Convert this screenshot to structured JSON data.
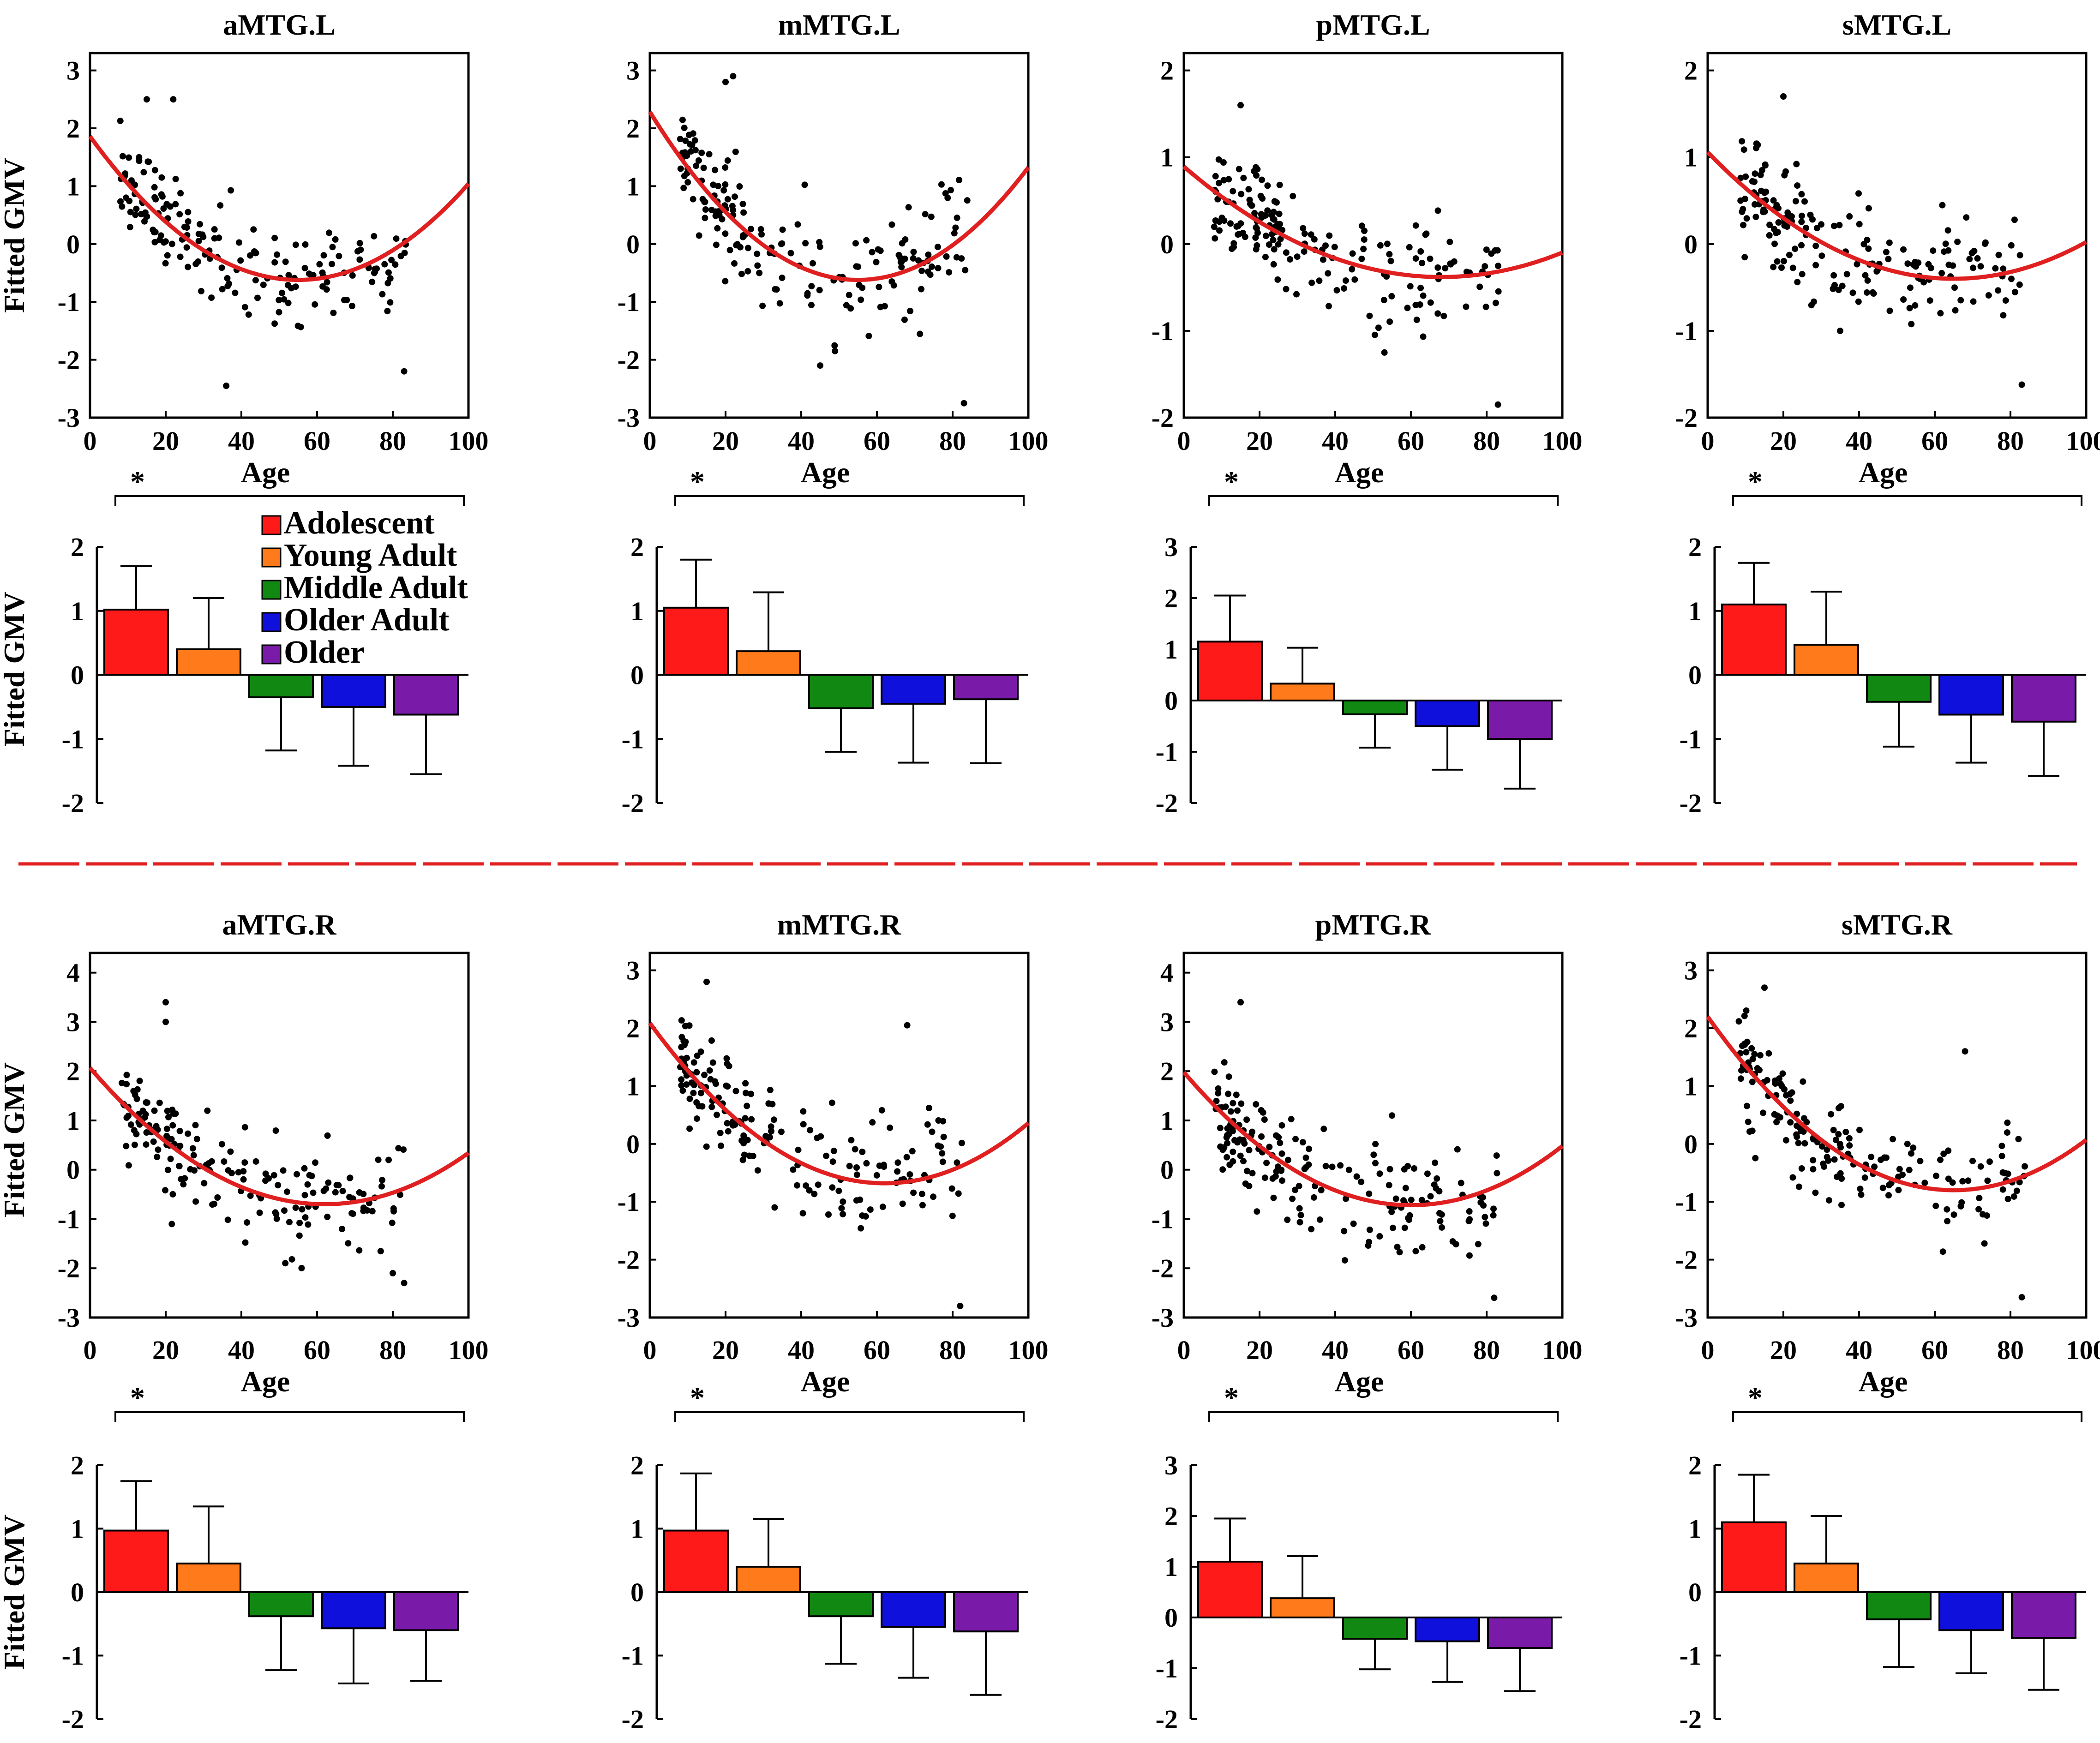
{
  "figure": {
    "divider_color": "#e02020",
    "fit_color": "#e02020",
    "point_color": "#000000"
  },
  "legend": {
    "items": [
      {
        "label": "Adolescent",
        "color": "#ff1a1a"
      },
      {
        "label": "Young Adult",
        "color": "#ff7a1a"
      },
      {
        "label": "Middle Adult",
        "color": "#118811"
      },
      {
        "label": "Older Adult",
        "color": "#1010dd"
      },
      {
        "label": "Older",
        "color": "#7a1aa8"
      }
    ]
  },
  "chart_data": [
    {
      "region": "aMTG.L",
      "title": "aMTG.L",
      "type": "scatter",
      "xlabel": "Age",
      "ylabel": "Fitted GMV",
      "xlim": [
        0,
        100
      ],
      "ylim": [
        -3,
        3.3
      ],
      "xticks": [
        "0",
        "20",
        "40",
        "60",
        "80",
        "100"
      ],
      "yticks": [
        "-3",
        "-2",
        "-1",
        "0",
        "1",
        "2",
        "3"
      ],
      "fit": {
        "a": 0.00082,
        "vertex_age": 55,
        "vertex_gmv": -0.62
      },
      "scatter_seed": 11,
      "outliers": [
        [
          15,
          2.5
        ],
        [
          22,
          2.5
        ],
        [
          36,
          -2.45
        ],
        [
          83,
          -2.2
        ]
      ],
      "bar": {
        "type": "bar",
        "ylabel": "Fitted GMV",
        "categories": [
          "Adolescent",
          "Young Adult",
          "Middle Adult",
          "Older Adult",
          "Older"
        ],
        "values": [
          1.02,
          0.4,
          -0.35,
          -0.5,
          -0.62
        ],
        "errors": [
          0.68,
          0.8,
          0.83,
          0.92,
          0.93
        ],
        "ylim": [
          -2,
          2
        ],
        "yticks": [
          "-2",
          "-1",
          "0",
          "1",
          "2"
        ],
        "sig": "*"
      }
    },
    {
      "region": "mMTG.L",
      "title": "mMTG.L",
      "type": "scatter",
      "xlabel": "Age",
      "ylabel": "",
      "xlim": [
        0,
        100
      ],
      "ylim": [
        -3,
        3.3
      ],
      "xticks": [
        "0",
        "20",
        "40",
        "60",
        "80",
        "100"
      ],
      "yticks": [
        "-3",
        "-2",
        "-1",
        "0",
        "1",
        "2",
        "3"
      ],
      "fit": {
        "a": 0.00096,
        "vertex_age": 55,
        "vertex_gmv": -0.62
      },
      "scatter_seed": 23,
      "outliers": [
        [
          20,
          2.8
        ],
        [
          22,
          2.9
        ],
        [
          83,
          -2.75
        ],
        [
          45,
          -2.1
        ]
      ],
      "bar": {
        "type": "bar",
        "ylabel": "",
        "categories": [
          "Adolescent",
          "Young Adult",
          "Middle Adult",
          "Older Adult",
          "Older"
        ],
        "values": [
          1.05,
          0.37,
          -0.52,
          -0.45,
          -0.38
        ],
        "errors": [
          0.75,
          0.92,
          0.68,
          0.92,
          1.0
        ],
        "ylim": [
          -2,
          2
        ],
        "yticks": [
          "-2",
          "-1",
          "0",
          "1",
          "2"
        ],
        "sig": "*"
      }
    },
    {
      "region": "pMTG.L",
      "title": "pMTG.L",
      "type": "scatter",
      "xlabel": "Age",
      "ylabel": "",
      "xlim": [
        0,
        100
      ],
      "ylim": [
        -2,
        2.2
      ],
      "xticks": [
        "0",
        "20",
        "40",
        "60",
        "80",
        "100"
      ],
      "yticks": [
        "-2",
        "-1",
        "0",
        "1",
        "2"
      ],
      "fit": {
        "a": 0.000275,
        "vertex_age": 68,
        "vertex_gmv": -0.38
      },
      "scatter_seed": 37,
      "outliers": [
        [
          15,
          1.6
        ],
        [
          53,
          -1.25
        ],
        [
          83,
          -1.85
        ]
      ],
      "bar": {
        "type": "bar",
        "ylabel": "",
        "categories": [
          "Adolescent",
          "Young Adult",
          "Middle Adult",
          "Older Adult",
          "Older"
        ],
        "values": [
          1.15,
          0.33,
          -0.27,
          -0.5,
          -0.75
        ],
        "errors": [
          0.9,
          0.7,
          0.65,
          0.85,
          0.97
        ],
        "ylim": [
          -2,
          3
        ],
        "yticks": [
          "-2",
          "-1",
          "0",
          "1",
          "2",
          "3"
        ],
        "sig": "*"
      }
    },
    {
      "region": "sMTG.L",
      "title": "sMTG.L",
      "type": "scatter",
      "xlabel": "Age",
      "ylabel": "",
      "xlim": [
        0,
        100
      ],
      "ylim": [
        -2,
        2.2
      ],
      "xticks": [
        "0",
        "20",
        "40",
        "60",
        "80",
        "100"
      ],
      "yticks": [
        "-2",
        "-1",
        "0",
        "1",
        "2"
      ],
      "fit": {
        "a": 0.000345,
        "vertex_age": 65,
        "vertex_gmv": -0.4
      },
      "scatter_seed": 41,
      "outliers": [
        [
          20,
          1.7
        ],
        [
          83,
          -1.62
        ],
        [
          35,
          -1.0
        ]
      ],
      "bar": {
        "type": "bar",
        "ylabel": "",
        "categories": [
          "Adolescent",
          "Young Adult",
          "Middle Adult",
          "Older Adult",
          "Older"
        ],
        "values": [
          1.1,
          0.47,
          -0.42,
          -0.62,
          -0.73
        ],
        "errors": [
          0.65,
          0.83,
          0.7,
          0.75,
          0.85
        ],
        "ylim": [
          -2,
          2
        ],
        "yticks": [
          "-2",
          "-1",
          "0",
          "1",
          "2"
        ],
        "sig": "*"
      }
    },
    {
      "region": "aMTG.R",
      "title": "aMTG.R",
      "type": "scatter",
      "xlabel": "Age",
      "ylabel": "Fitted GMV",
      "xlim": [
        0,
        100
      ],
      "ylim": [
        -3,
        4.4
      ],
      "xticks": [
        "0",
        "20",
        "40",
        "60",
        "80",
        "100"
      ],
      "yticks": [
        "-3",
        "-2",
        "-1",
        "0",
        "1",
        "2",
        "3",
        "4"
      ],
      "fit": {
        "a": 0.00072,
        "vertex_age": 62,
        "vertex_gmv": -0.7
      },
      "scatter_seed": 53,
      "outliers": [
        [
          20,
          3.4
        ],
        [
          20,
          3.0
        ],
        [
          83,
          -2.3
        ],
        [
          80,
          -2.1
        ]
      ],
      "bar": {
        "type": "bar",
        "ylabel": "Fitted GMV",
        "categories": [
          "Adolescent",
          "Young Adult",
          "Middle Adult",
          "Older Adult",
          "Older"
        ],
        "values": [
          0.97,
          0.45,
          -0.38,
          -0.57,
          -0.6
        ],
        "errors": [
          0.78,
          0.9,
          0.85,
          0.87,
          0.8
        ],
        "ylim": [
          -2,
          2
        ],
        "yticks": [
          "-2",
          "-1",
          "0",
          "1",
          "2"
        ],
        "sig": "*"
      }
    },
    {
      "region": "mMTG.R",
      "title": "mMTG.R",
      "type": "scatter",
      "xlabel": "Age",
      "ylabel": "",
      "xlim": [
        0,
        100
      ],
      "ylim": [
        -3,
        3.3
      ],
      "xticks": [
        "0",
        "20",
        "40",
        "60",
        "80",
        "100"
      ],
      "yticks": [
        "-3",
        "-2",
        "-1",
        "0",
        "1",
        "2",
        "3"
      ],
      "fit": {
        "a": 0.00072,
        "vertex_age": 62,
        "vertex_gmv": -0.68
      },
      "scatter_seed": 67,
      "outliers": [
        [
          15,
          2.8
        ],
        [
          68,
          2.05
        ],
        [
          82,
          -2.8
        ]
      ],
      "bar": {
        "type": "bar",
        "ylabel": "",
        "categories": [
          "Adolescent",
          "Young Adult",
          "Middle Adult",
          "Older Adult",
          "Older"
        ],
        "values": [
          0.97,
          0.4,
          -0.38,
          -0.55,
          -0.62
        ],
        "errors": [
          0.9,
          0.75,
          0.75,
          0.8,
          1.0
        ],
        "ylim": [
          -2,
          2
        ],
        "yticks": [
          "-2",
          "-1",
          "0",
          "1",
          "2"
        ],
        "sig": "*"
      }
    },
    {
      "region": "pMTG.R",
      "title": "pMTG.R",
      "type": "scatter",
      "xlabel": "Age",
      "ylabel": "",
      "xlim": [
        0,
        100
      ],
      "ylim": [
        -3,
        4.4
      ],
      "xticks": [
        "0",
        "20",
        "40",
        "60",
        "80",
        "100"
      ],
      "yticks": [
        "-3",
        "-2",
        "-1",
        "0",
        "1",
        "2",
        "3",
        "4"
      ],
      "fit": {
        "a": 0.00075,
        "vertex_age": 60,
        "vertex_gmv": -0.72
      },
      "scatter_seed": 79,
      "outliers": [
        [
          15,
          3.4
        ],
        [
          82,
          -2.6
        ],
        [
          55,
          1.1
        ]
      ],
      "bar": {
        "type": "bar",
        "ylabel": "",
        "categories": [
          "Adolescent",
          "Young Adult",
          "Middle Adult",
          "Older Adult",
          "Older"
        ],
        "values": [
          1.1,
          0.38,
          -0.42,
          -0.47,
          -0.6
        ],
        "errors": [
          0.85,
          0.83,
          0.6,
          0.8,
          0.85
        ],
        "ylim": [
          -2,
          3
        ],
        "yticks": [
          "-2",
          "-1",
          "0",
          "1",
          "2",
          "3"
        ],
        "sig": "*"
      }
    },
    {
      "region": "sMTG.R",
      "title": "sMTG.R",
      "type": "scatter",
      "xlabel": "Age",
      "ylabel": "",
      "xlim": [
        0,
        100
      ],
      "ylim": [
        -3,
        3.3
      ],
      "xticks": [
        "0",
        "20",
        "40",
        "60",
        "80",
        "100"
      ],
      "yticks": [
        "-3",
        "-2",
        "-1",
        "0",
        "1",
        "2",
        "3"
      ],
      "fit": {
        "a": 0.00071,
        "vertex_age": 65,
        "vertex_gmv": -0.8
      },
      "scatter_seed": 97,
      "outliers": [
        [
          15,
          2.7
        ],
        [
          68,
          1.6
        ],
        [
          83,
          -2.65
        ]
      ],
      "bar": {
        "type": "bar",
        "ylabel": "",
        "categories": [
          "Adolescent",
          "Young Adult",
          "Middle Adult",
          "Older Adult",
          "Older"
        ],
        "values": [
          1.1,
          0.45,
          -0.43,
          -0.6,
          -0.72
        ],
        "errors": [
          0.75,
          0.75,
          0.75,
          0.68,
          0.82
        ],
        "ylim": [
          -2,
          2
        ],
        "yticks": [
          "-2",
          "-1",
          "0",
          "1",
          "2"
        ],
        "sig": "*"
      }
    }
  ]
}
